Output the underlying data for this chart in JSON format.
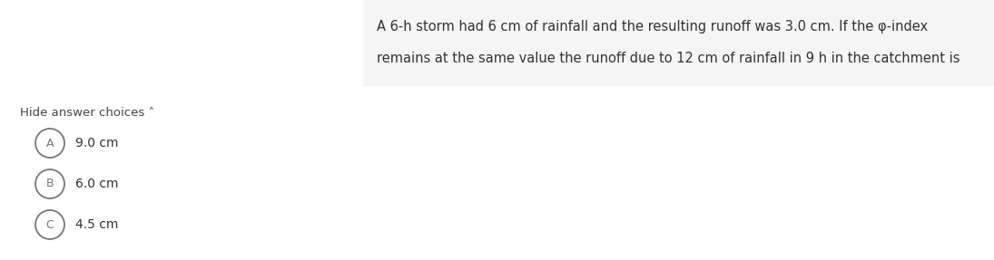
{
  "bg_color": "#f5f5f5",
  "white_bg": "#ffffff",
  "question_text_line1": "A 6-h storm had 6 cm of rainfall and the resulting runoff was 3.0 cm. If the φ-index",
  "question_text_line2": "remains at the same value the runoff due to 12 cm of rainfall in 9 h in the catchment is",
  "hide_text": "Hide answer choices ˄",
  "choices": [
    {
      "label": "A",
      "text": "9.0 cm"
    },
    {
      "label": "B",
      "text": "6.0 cm"
    },
    {
      "label": "C",
      "text": "4.5 cm"
    }
  ],
  "text_color": "#333333",
  "circle_edge_color": "#777777",
  "hide_color": "#444444",
  "font_size_question": 10.5,
  "font_size_choices": 10.0,
  "font_size_hide": 9.5,
  "font_size_label": 9.0
}
